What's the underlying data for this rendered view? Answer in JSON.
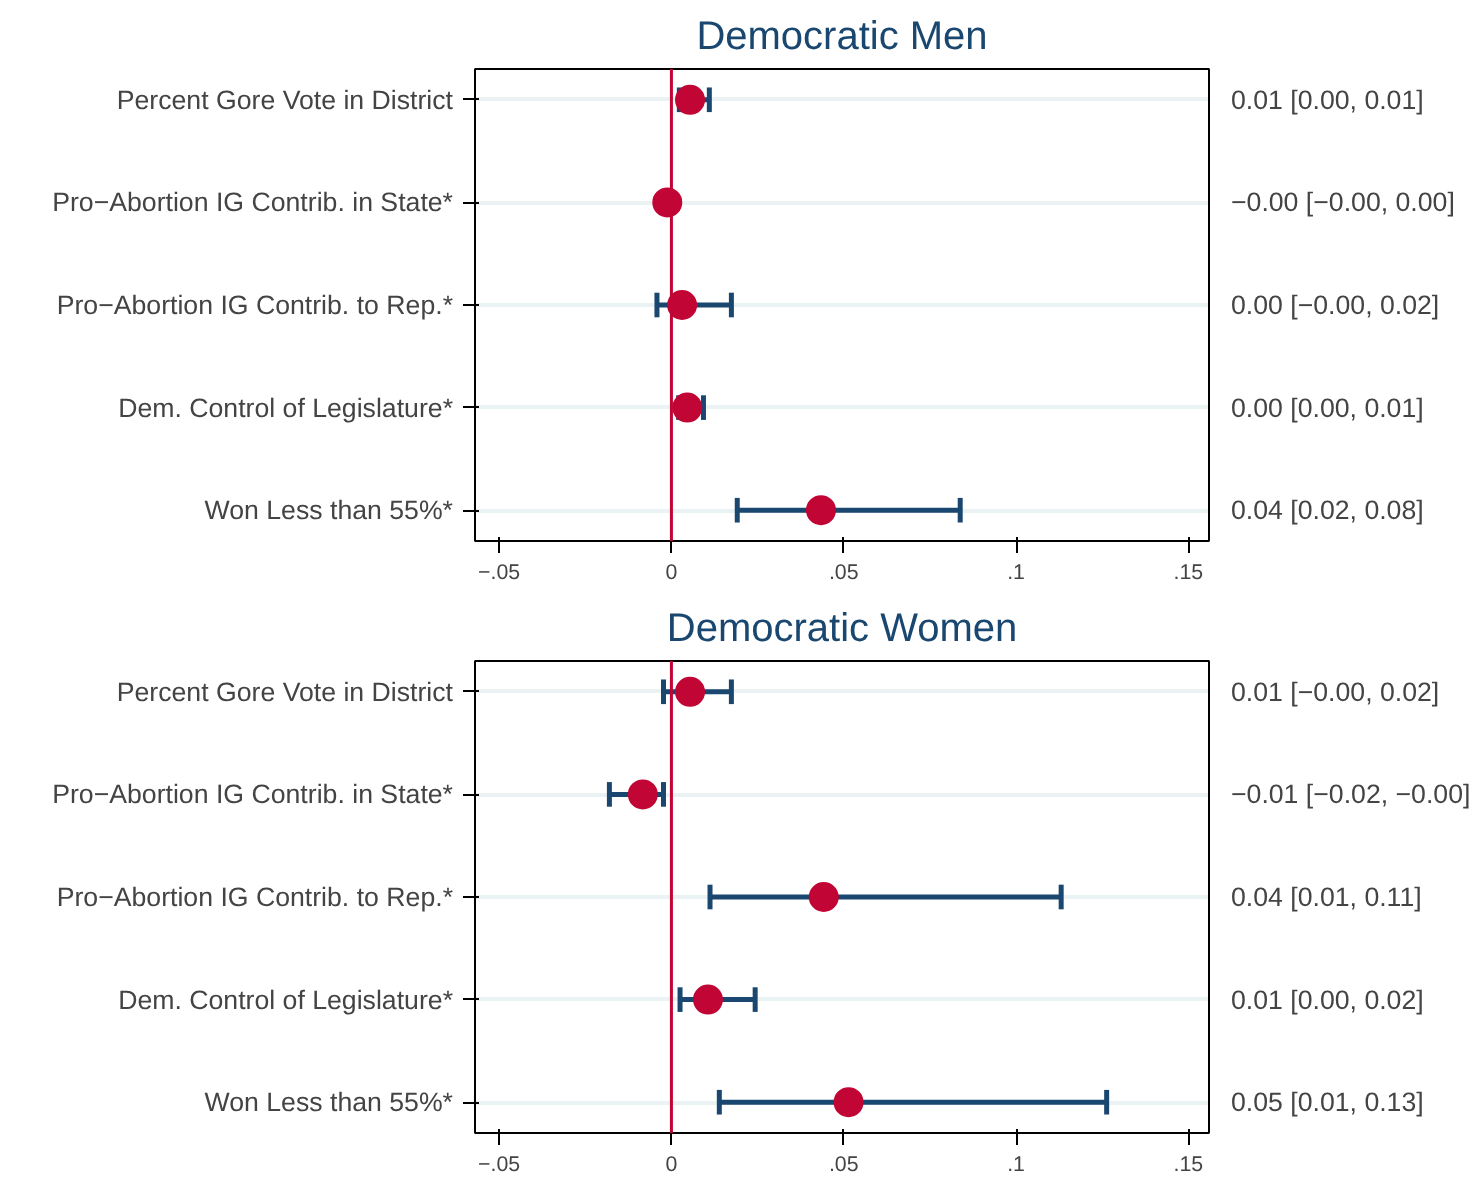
{
  "chart_data": [
    {
      "type": "scatter",
      "title": "Democratic Men",
      "categories": [
        "Percent Gore Vote in District",
        "Pro−Abortion IG Contrib. in State*",
        "Pro−Abortion IG Contrib. to Rep.*",
        "Dem. Control of Legislature*",
        "Won Less than 55%*"
      ],
      "orientation": "horizontal",
      "series": [
        {
          "color": "#c10534",
          "values": [
            0.0054,
            -0.0012,
            0.0031,
            0.0046,
            0.0434
          ],
          "errors": [
            [
              0.0023,
              0.011
            ],
            null,
            [
              -0.0042,
              0.0174
            ],
            [
              0.0021,
              0.0093
            ],
            [
              0.0191,
              0.0838
            ]
          ]
        }
      ],
      "annotations": [
        "0.01 [0.00, 0.01]",
        "−0.00 [−0.00, 0.00]",
        "0.00 [−0.00, 0.02]",
        "0.00 [0.00, 0.01]",
        "0.04 [0.02, 0.08]"
      ],
      "xlim": [
        -0.057,
        0.156
      ],
      "xticks": [
        {
          "value": -0.05,
          "label": "−.05"
        },
        0,
        {
          "value": 0.05,
          "label": ".05"
        },
        {
          "value": 0.1,
          "label": ".1"
        },
        {
          "value": 0.15,
          "label": ".15"
        }
      ],
      "ref_lines": [
        {
          "axis": "x",
          "value": 0,
          "color": "#c10534"
        }
      ],
      "grid": "y",
      "marker": "circle"
    },
    {
      "type": "scatter",
      "title": "Democratic Women",
      "categories": [
        "Percent Gore Vote in District",
        "Pro−Abortion IG Contrib. in State*",
        "Pro−Abortion IG Contrib. to Rep.*",
        "Dem. Control of Legislature*",
        "Won Less than 55%*"
      ],
      "orientation": "horizontal",
      "series": [
        {
          "color": "#c10534",
          "values": [
            0.0054,
            -0.0083,
            0.0442,
            0.0106,
            0.0514
          ],
          "errors": [
            [
              -0.0023,
              0.0174
            ],
            [
              -0.018,
              -0.0023
            ],
            [
              0.0112,
              0.1131
            ],
            [
              0.0025,
              0.0243
            ],
            [
              0.0139,
              0.1263
            ]
          ]
        }
      ],
      "annotations": [
        "0.01 [−0.00, 0.02]",
        "−0.01 [−0.02, −0.00]",
        "0.04 [0.01, 0.11]",
        "0.01 [0.00, 0.02]",
        "0.05 [0.01, 0.13]"
      ],
      "xlim": [
        -0.057,
        0.156
      ],
      "xticks": [
        {
          "value": -0.05,
          "label": "−.05"
        },
        0,
        {
          "value": 0.05,
          "label": ".05"
        },
        {
          "value": 0.1,
          "label": ".1"
        },
        {
          "value": 0.15,
          "label": ".15"
        }
      ],
      "ref_lines": [
        {
          "axis": "x",
          "value": 0,
          "color": "#c10534"
        }
      ],
      "grid": "y",
      "marker": "circle"
    }
  ]
}
